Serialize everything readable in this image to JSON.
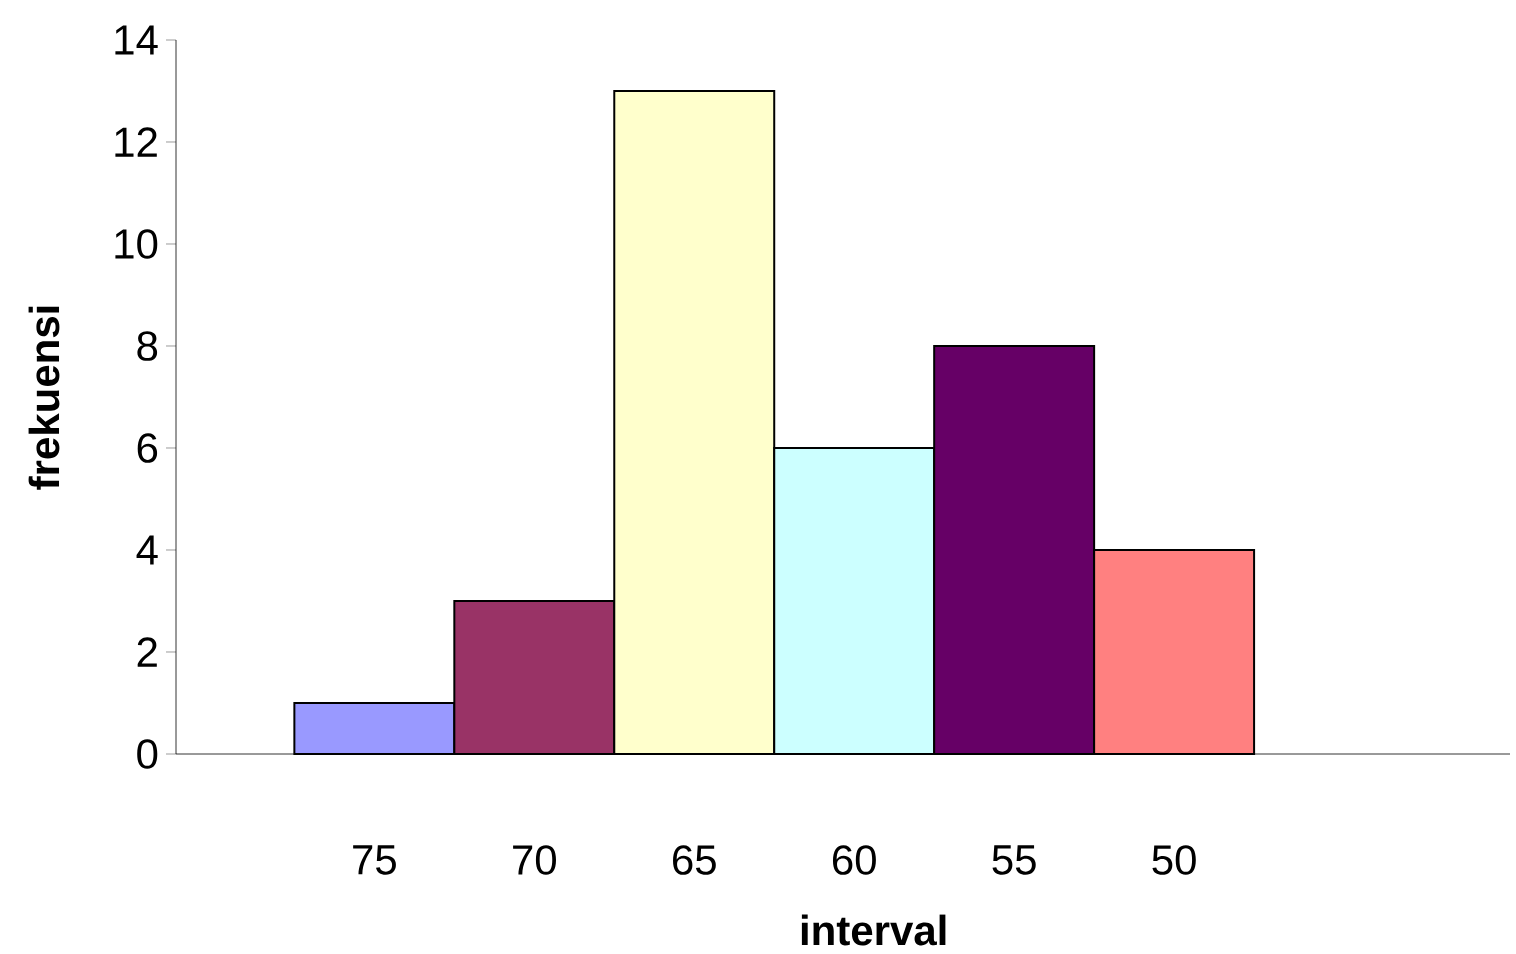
{
  "chart_data": {
    "type": "bar",
    "xlabel": "interval",
    "ylabel": "frekuensi",
    "categories": [
      "75",
      "70",
      "65",
      "60",
      "55",
      "50"
    ],
    "values": [
      1,
      3,
      13,
      6,
      8,
      4
    ],
    "colors": [
      "#9999ff",
      "#993366",
      "#ffffcc",
      "#ccffff",
      "#660066",
      "#ff8080"
    ],
    "ylim": [
      0,
      14
    ],
    "yticks": [
      0,
      2,
      4,
      6,
      8,
      10,
      12,
      14
    ]
  }
}
